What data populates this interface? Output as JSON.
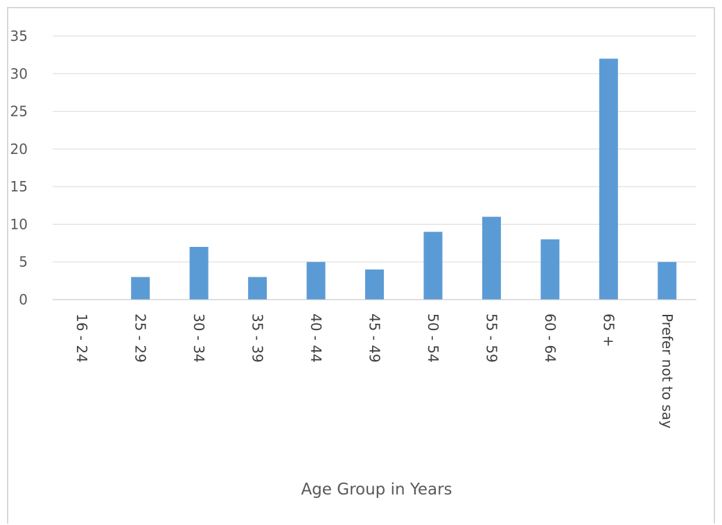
{
  "chart_data": {
    "type": "bar",
    "title": "",
    "xlabel": "Age Group in Years",
    "ylabel": "",
    "categories": [
      "16 - 24",
      "25 - 29",
      "30 - 34",
      "35 - 39",
      "40 - 44",
      "45 - 49",
      "50 - 54",
      "55 - 59",
      "60 - 64",
      "65 +",
      "Prefer not to say"
    ],
    "values": [
      0,
      3,
      7,
      3,
      5,
      4,
      9,
      11,
      8,
      32,
      5
    ],
    "ylim": [
      0,
      35
    ],
    "yticks": [
      0,
      5,
      10,
      15,
      20,
      25,
      30,
      35
    ],
    "grid": true,
    "legend": "none",
    "bar_color": "#5b9bd5"
  }
}
